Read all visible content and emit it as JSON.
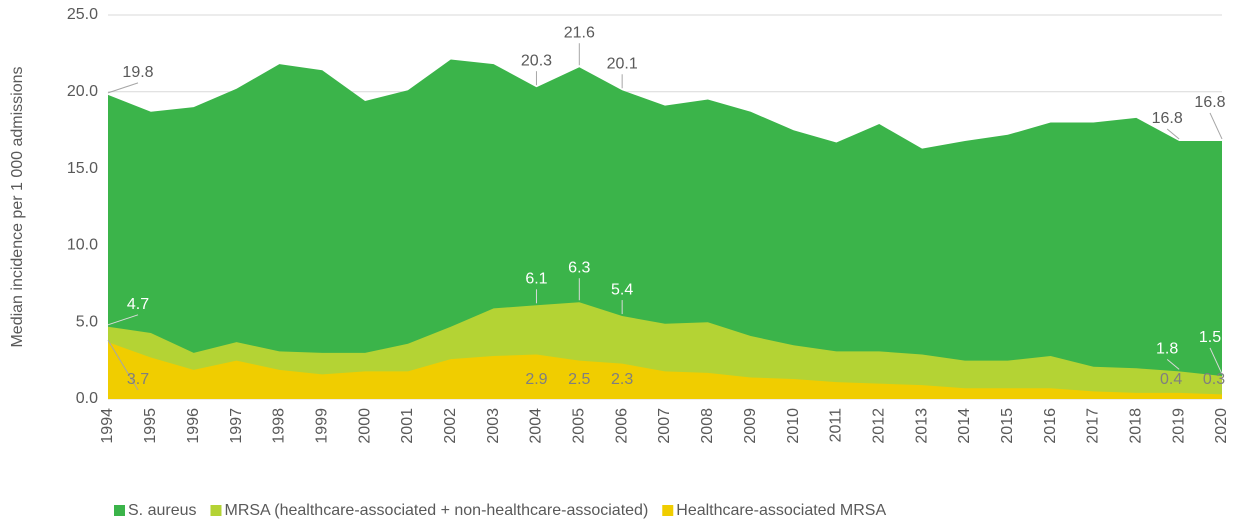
{
  "chart_data": {
    "type": "area",
    "y_label": "Median incidence per 1 000 admissions",
    "x": [
      "1994",
      "1995",
      "1996",
      "1997",
      "1998",
      "1999",
      "2000",
      "2001",
      "2002",
      "2003",
      "2004",
      "2005",
      "2006",
      "2007",
      "2008",
      "2009",
      "2010",
      "2011",
      "2012",
      "2013",
      "2014",
      "2015",
      "2016",
      "2017",
      "2018",
      "2019",
      "2020"
    ],
    "ylim": [
      0,
      25
    ],
    "yticks": [
      {
        "value": 0,
        "label": "0.0"
      },
      {
        "value": 5,
        "label": "5.0"
      },
      {
        "value": 10,
        "label": "10.0"
      },
      {
        "value": 15,
        "label": "15.0"
      },
      {
        "value": 20,
        "label": "20.0"
      },
      {
        "value": 25,
        "label": "25.0"
      }
    ],
    "grid": true,
    "legend": "bottom",
    "series": [
      {
        "name": "S. aureus",
        "color": "#3bb44a",
        "values": [
          19.8,
          18.7,
          19.0,
          20.2,
          21.8,
          21.4,
          19.4,
          20.1,
          22.1,
          21.8,
          20.3,
          21.6,
          20.1,
          19.1,
          19.5,
          18.7,
          17.5,
          16.7,
          17.9,
          16.3,
          16.8,
          17.2,
          18.0,
          18.0,
          18.3,
          16.8,
          16.8
        ],
        "value_labels": [
          "19.8",
          null,
          null,
          null,
          null,
          null,
          null,
          null,
          null,
          null,
          "20.3",
          "21.6",
          "20.1",
          null,
          null,
          null,
          null,
          null,
          null,
          null,
          null,
          null,
          null,
          null,
          null,
          "16.8",
          "16.8"
        ]
      },
      {
        "name": "MRSA (healthcare-associated + non-healthcare-associated)",
        "color": "#b4d334",
        "values": [
          4.7,
          4.3,
          3.0,
          3.7,
          3.1,
          3.0,
          3.0,
          3.6,
          4.7,
          5.9,
          6.1,
          6.3,
          5.4,
          4.9,
          5.0,
          4.1,
          3.5,
          3.1,
          3.1,
          2.9,
          2.5,
          2.5,
          2.8,
          2.1,
          2.0,
          1.8,
          1.5
        ],
        "value_labels": [
          "4.7",
          null,
          null,
          null,
          null,
          null,
          null,
          null,
          null,
          null,
          "6.1",
          "6.3",
          "5.4",
          null,
          null,
          null,
          null,
          null,
          null,
          null,
          null,
          null,
          null,
          null,
          null,
          "1.8",
          "1.5"
        ]
      },
      {
        "name": "Healthcare-associated MRSA",
        "color": "#f0cd00",
        "values": [
          3.7,
          2.7,
          1.9,
          2.5,
          1.9,
          1.6,
          1.8,
          1.8,
          2.6,
          2.8,
          2.9,
          2.5,
          2.3,
          1.8,
          1.7,
          1.4,
          1.3,
          1.1,
          1.0,
          0.9,
          0.7,
          0.7,
          0.7,
          0.5,
          0.4,
          0.4,
          0.3
        ],
        "value_labels": [
          "3.7",
          null,
          null,
          null,
          null,
          null,
          null,
          null,
          null,
          null,
          "2.9",
          "2.5",
          "2.3",
          null,
          null,
          null,
          null,
          null,
          null,
          null,
          null,
          null,
          null,
          null,
          null,
          "0.4",
          "0.3"
        ]
      }
    ]
  }
}
